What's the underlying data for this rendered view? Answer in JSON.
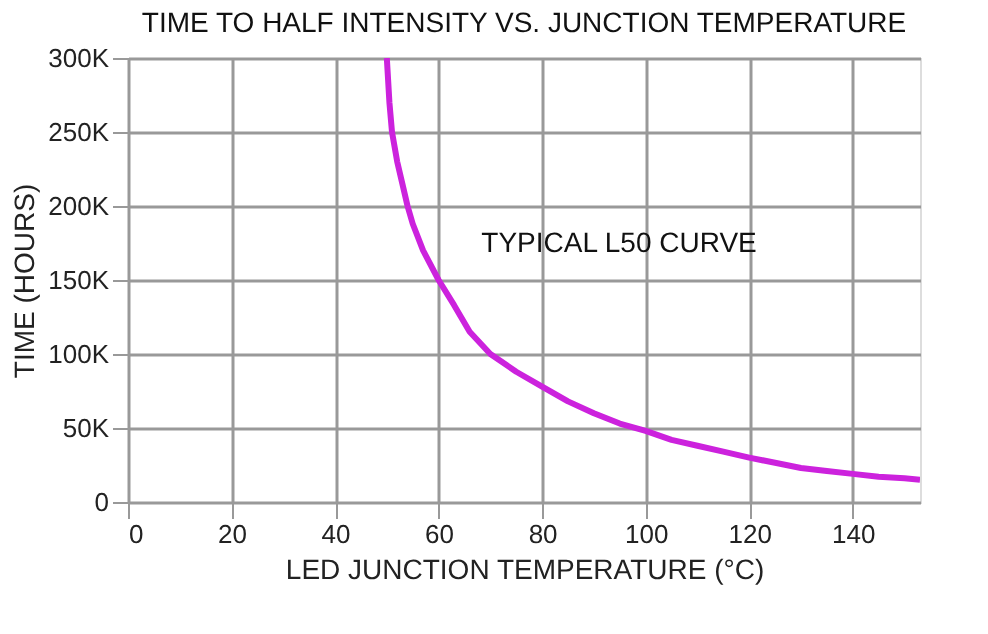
{
  "chart_data": {
    "type": "line",
    "title": "TIME TO HALF INTENSITY VS. JUNCTION TEMPERATURE",
    "xlabel": "LED JUNCTION TEMPERATURE (°C)",
    "ylabel": "TIME (HOURS)",
    "x": [
      50,
      50.5,
      51,
      52,
      53,
      54,
      55,
      57,
      60,
      63,
      66,
      70,
      75,
      80,
      85,
      90,
      95,
      100,
      105,
      110,
      115,
      120,
      125,
      130,
      135,
      140,
      145,
      150,
      153
    ],
    "series": [
      {
        "color": "#cc22dd",
        "values": [
          300000,
          270000,
          250000,
          230000,
          215000,
          200000,
          188000,
          170000,
          150000,
          133000,
          115000,
          100000,
          88000,
          78000,
          68000,
          60000,
          53000,
          48000,
          42000,
          38000,
          34000,
          30000,
          26500,
          23000,
          21000,
          19000,
          17000,
          16000,
          15000
        ]
      }
    ],
    "xlim": [
      0,
      153
    ],
    "xticks": [
      0,
      20,
      40,
      60,
      80,
      100,
      120,
      140
    ],
    "ylim": [
      0,
      300000
    ],
    "yticks": [
      {
        "value": 0,
        "label": "0"
      },
      {
        "value": 50000,
        "label": "50K"
      },
      {
        "value": 100000,
        "label": "100K"
      },
      {
        "value": 150000,
        "label": "150K"
      },
      {
        "value": 200000,
        "label": "200K"
      },
      {
        "value": 250000,
        "label": "250K"
      },
      {
        "value": 300000,
        "label": "300K"
      }
    ],
    "grid": true,
    "legend": false,
    "marker": "none",
    "line_style": "solid",
    "annotations": [
      "TYPICAL L50 CURVE"
    ]
  }
}
